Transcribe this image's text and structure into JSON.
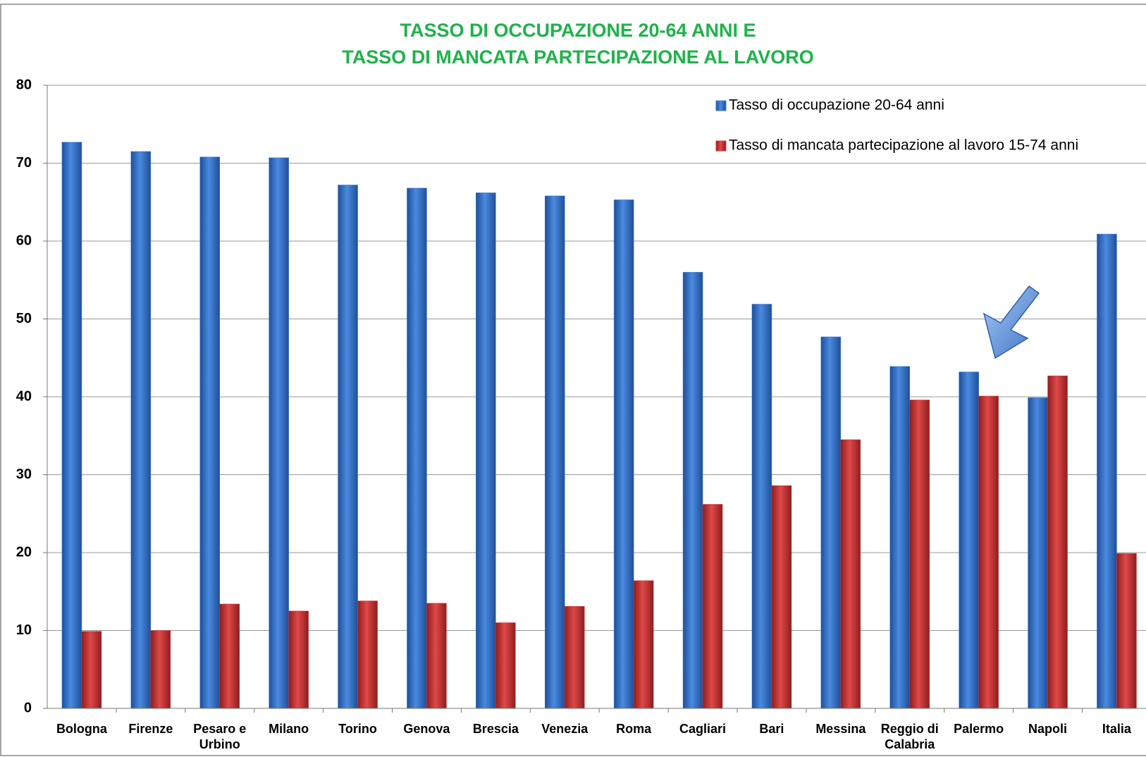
{
  "chart_data": {
    "type": "bar",
    "title": [
      "TASSO DI OCCUPAZIONE 20-64 ANNI E",
      "TASSO DI MANCATA PARTECIPAZIONE AL LAVORO"
    ],
    "categories": [
      "Bologna",
      "Firenze",
      "Pesaro e Urbino",
      "Milano",
      "Torino",
      "Genova",
      "Brescia",
      "Venezia",
      "Roma",
      "Cagliari",
      "Bari",
      "Messina",
      "Reggio di Calabria",
      "Palermo",
      "Napoli",
      "Italia"
    ],
    "series": [
      {
        "name": "Tasso di occupazione 20-64 anni",
        "color": "#3c7dd6",
        "values": [
          72.7,
          71.5,
          70.8,
          70.7,
          67.2,
          66.8,
          66.2,
          65.8,
          65.3,
          56.0,
          51.9,
          47.7,
          43.9,
          43.2,
          39.9,
          60.9
        ]
      },
      {
        "name": "Tasso di mancata partecipazione al lavoro 15-74 anni",
        "color": "#d63a3a",
        "values": [
          9.9,
          10.0,
          13.4,
          12.5,
          13.8,
          13.5,
          11.0,
          13.1,
          16.4,
          26.2,
          28.6,
          34.5,
          39.6,
          40.1,
          42.7,
          19.9
        ]
      }
    ],
    "ylim": [
      0,
      80
    ],
    "yticks": [
      0,
      10,
      20,
      30,
      40,
      50,
      60,
      70,
      80
    ],
    "grid": true,
    "legend": "top-right"
  }
}
